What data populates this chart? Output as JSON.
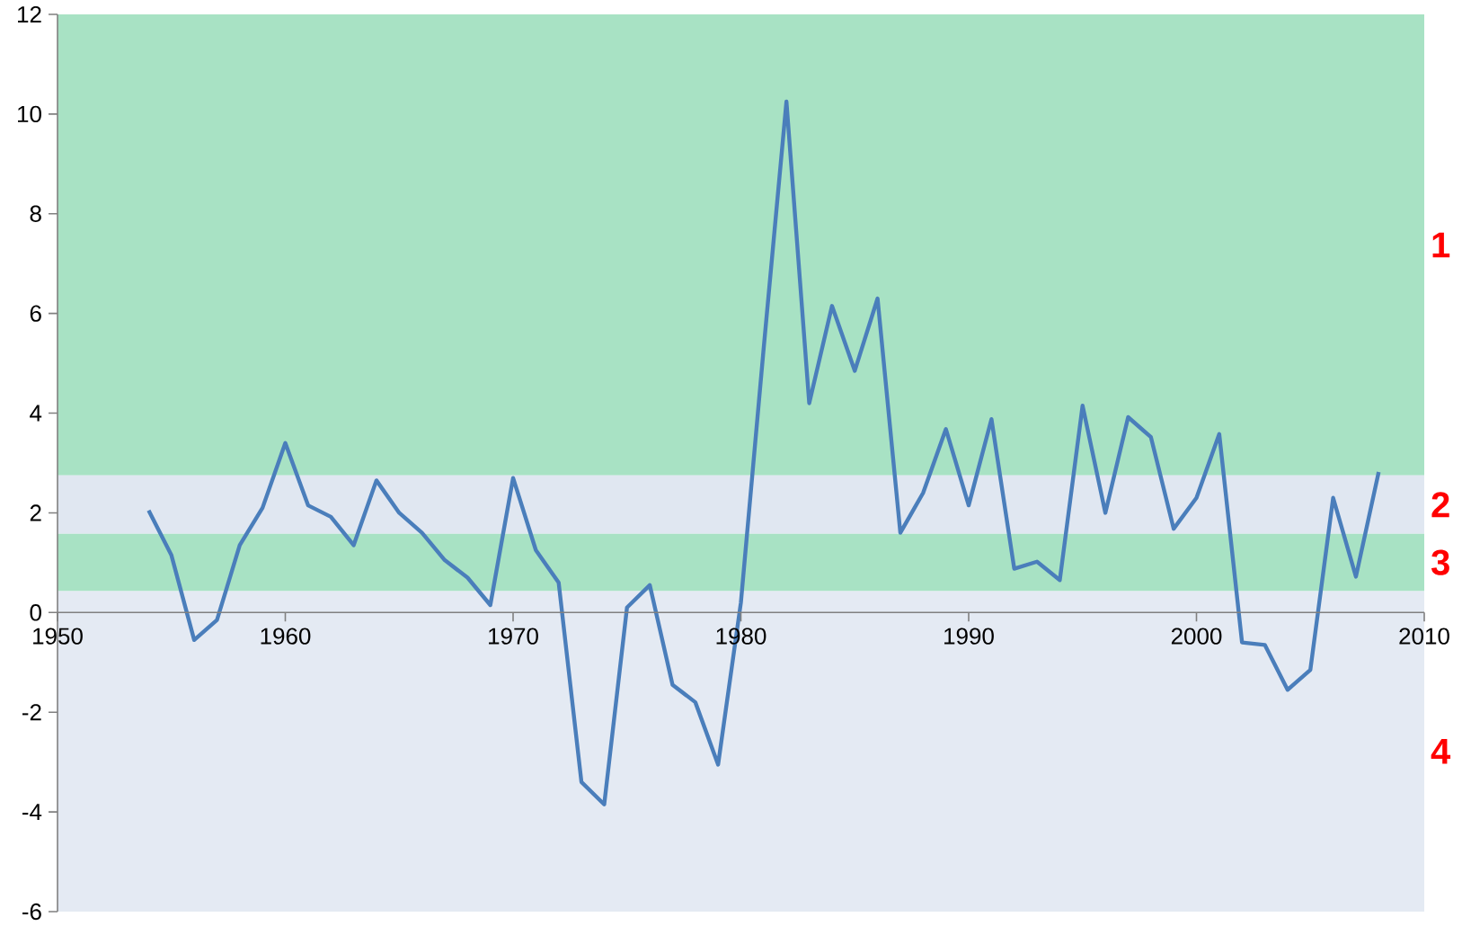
{
  "chart_data": {
    "type": "line",
    "x": [
      1954,
      1955,
      1956,
      1957,
      1958,
      1959,
      1960,
      1961,
      1962,
      1963,
      1964,
      1965,
      1966,
      1967,
      1968,
      1969,
      1970,
      1971,
      1972,
      1973,
      1974,
      1975,
      1976,
      1977,
      1978,
      1979,
      1980,
      1981,
      1982,
      1983,
      1984,
      1985,
      1986,
      1987,
      1988,
      1989,
      1990,
      1991,
      1992,
      1993,
      1994,
      1995,
      1996,
      1997,
      1998,
      1999,
      2000,
      2001,
      2002,
      2003,
      2004,
      2005,
      2006,
      2007,
      2008
    ],
    "values": [
      2.05,
      1.15,
      -0.55,
      -0.15,
      1.35,
      2.1,
      3.4,
      2.15,
      1.92,
      1.35,
      2.65,
      2.0,
      1.6,
      1.05,
      0.7,
      0.15,
      2.7,
      1.25,
      0.6,
      -3.4,
      -3.85,
      0.1,
      0.55,
      -1.45,
      -1.8,
      -3.05,
      0.2,
      5.3,
      10.25,
      4.2,
      6.15,
      4.85,
      6.3,
      1.6,
      2.4,
      3.68,
      2.15,
      3.88,
      0.88,
      1.02,
      0.65,
      4.15,
      2.0,
      3.92,
      3.52,
      1.68,
      2.3,
      3.58,
      -0.6,
      -0.65,
      -1.55,
      -1.15,
      2.3,
      0.72,
      2.82
    ],
    "color": "#4a7ebb",
    "xlim": [
      1950,
      2010
    ],
    "xticks": [
      1950,
      1960,
      1970,
      1980,
      1990,
      2000,
      2010
    ],
    "ylim": [
      -6,
      12
    ],
    "yticks": [
      -6,
      -4,
      -2,
      0,
      2,
      4,
      6,
      8,
      10,
      12
    ],
    "bands": [
      {
        "axis": "y",
        "from": 2.75,
        "to": 12,
        "label": "1",
        "color": "#a8e2c4"
      },
      {
        "axis": "y",
        "from": 1.58,
        "to": 2.75,
        "label": "2",
        "color": "#e0e7f1"
      },
      {
        "axis": "y",
        "from": 0.43,
        "to": 1.58,
        "label": "3",
        "color": "#a8e2c4"
      },
      {
        "axis": "y",
        "from": -6,
        "to": 0.43,
        "label": "4",
        "color": "#e4eaf3"
      }
    ],
    "grid": false
  }
}
